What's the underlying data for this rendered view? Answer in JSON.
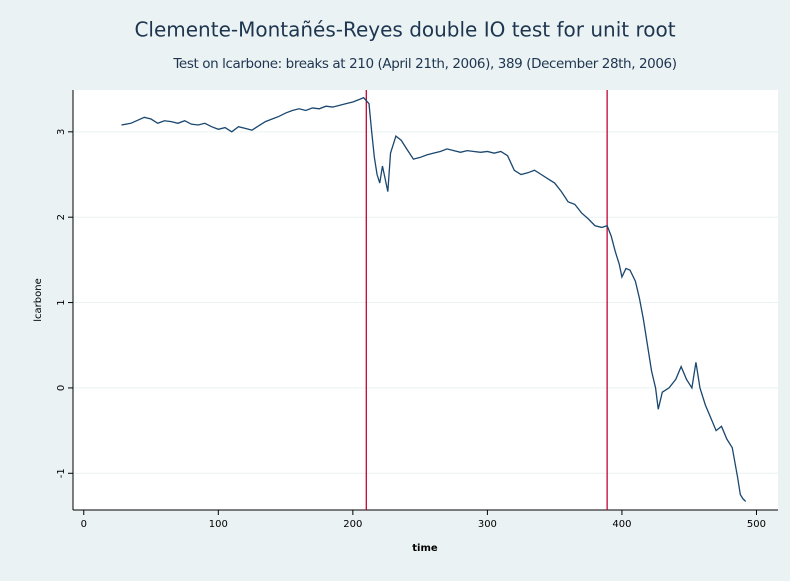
{
  "chart_data": {
    "type": "line",
    "title": "Clemente-Montañés-Reyes double IO test for unit root",
    "subtitle": "Test on lcarbone: breaks at 210 (April 21th, 2006), 389 (December 28th, 2006)",
    "x_label": "time",
    "y_label": "lcarbone",
    "x": [
      28,
      35,
      45,
      50,
      55,
      60,
      65,
      70,
      75,
      80,
      85,
      90,
      95,
      100,
      105,
      110,
      115,
      120,
      125,
      130,
      135,
      140,
      145,
      150,
      155,
      160,
      165,
      170,
      175,
      180,
      185,
      190,
      195,
      200,
      205,
      208,
      212,
      214,
      216,
      218,
      220,
      222,
      224,
      226,
      228,
      232,
      236,
      240,
      245,
      250,
      255,
      260,
      265,
      270,
      275,
      280,
      285,
      290,
      295,
      300,
      305,
      310,
      315,
      320,
      325,
      330,
      335,
      340,
      345,
      350,
      355,
      360,
      365,
      370,
      375,
      380,
      385,
      389,
      392,
      395,
      398,
      400,
      403,
      406,
      410,
      413,
      416,
      419,
      422,
      425,
      427,
      430,
      435,
      440,
      444,
      448,
      452,
      455,
      458,
      462,
      466,
      470,
      474,
      478,
      482,
      486,
      488,
      490,
      492
    ],
    "series": [
      {
        "name": "lcarbone",
        "color": "#1a476f",
        "values": [
          3.08,
          3.1,
          3.17,
          3.15,
          3.1,
          3.13,
          3.12,
          3.1,
          3.13,
          3.09,
          3.08,
          3.1,
          3.06,
          3.03,
          3.05,
          3.0,
          3.06,
          3.04,
          3.02,
          3.07,
          3.12,
          3.15,
          3.18,
          3.22,
          3.25,
          3.27,
          3.25,
          3.28,
          3.27,
          3.3,
          3.29,
          3.31,
          3.33,
          3.35,
          3.38,
          3.4,
          3.33,
          3.0,
          2.7,
          2.5,
          2.4,
          2.6,
          2.45,
          2.3,
          2.75,
          2.95,
          2.9,
          2.8,
          2.68,
          2.7,
          2.73,
          2.75,
          2.77,
          2.8,
          2.78,
          2.76,
          2.78,
          2.77,
          2.76,
          2.77,
          2.75,
          2.77,
          2.72,
          2.55,
          2.5,
          2.52,
          2.55,
          2.5,
          2.45,
          2.4,
          2.3,
          2.18,
          2.15,
          2.05,
          1.98,
          1.9,
          1.88,
          1.9,
          1.78,
          1.6,
          1.45,
          1.3,
          1.4,
          1.38,
          1.25,
          1.05,
          0.8,
          0.5,
          0.2,
          0.0,
          -0.25,
          -0.05,
          0.0,
          0.1,
          0.25,
          0.1,
          0.0,
          0.3,
          0.0,
          -0.2,
          -0.35,
          -0.5,
          -0.45,
          -0.6,
          -0.7,
          -1.05,
          -1.25,
          -1.3,
          -1.33
        ]
      }
    ],
    "breaks": [
      210,
      389
    ],
    "break_color": "#c10534",
    "xlim": [
      -8,
      516
    ],
    "ylim": [
      -1.43,
      3.49
    ],
    "xticks": [
      0,
      100,
      200,
      300,
      400,
      500
    ],
    "yticks": [
      -1,
      0,
      1,
      2,
      3
    ],
    "grid": true
  }
}
